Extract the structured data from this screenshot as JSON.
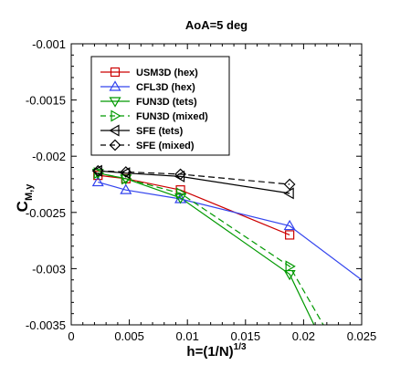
{
  "chart_data": {
    "type": "line",
    "title": "AoA=5 deg",
    "xlabel": {
      "base": "h=(1/N)",
      "sup": "1/3"
    },
    "ylabel": {
      "base": "C",
      "sub": "M,y"
    },
    "xlim": [
      0,
      0.025
    ],
    "ylim": [
      -0.0035,
      -0.001
    ],
    "x_ticks": [
      0,
      0.005,
      0.01,
      0.015,
      0.02,
      0.025
    ],
    "x_tick_labels": [
      "0",
      "0.005",
      "0.01",
      "0.015",
      "0.02",
      "0.025"
    ],
    "y_ticks": [
      -0.0035,
      -0.003,
      -0.0025,
      -0.002,
      -0.0015,
      -0.001
    ],
    "y_tick_labels": [
      "-0.0035",
      "-0.003",
      "-0.0025",
      "-0.002",
      "-0.0015",
      "-0.001"
    ],
    "grid": false,
    "legend_position": "upper-left",
    "series": [
      {
        "name": "USM3D (hex)",
        "color": "#cc0000",
        "marker": "square",
        "dash": "solid",
        "x": [
          0.0023,
          0.0047,
          0.0094,
          0.0188
        ],
        "y": [
          -0.00217,
          -0.0022,
          -0.0023,
          -0.0027
        ],
        "extension": []
      },
      {
        "name": "CFL3D (hex)",
        "color": "#3344ee",
        "marker": "triangle-up",
        "dash": "solid",
        "x": [
          0.0023,
          0.0047,
          0.0094,
          0.0188
        ],
        "y": [
          -0.00223,
          -0.0023,
          -0.00238,
          -0.00262
        ],
        "extension": [
          [
            0.025,
            -0.0031
          ]
        ]
      },
      {
        "name": "FUN3D (tets)",
        "color": "#009900",
        "marker": "triangle-down",
        "dash": "solid",
        "x": [
          0.0023,
          0.0047,
          0.0094,
          0.0188
        ],
        "y": [
          -0.00215,
          -0.0022,
          -0.00237,
          -0.00305
        ],
        "extension": [
          [
            0.0209,
            -0.0035
          ]
        ]
      },
      {
        "name": "FUN3D (mixed)",
        "color": "#009900",
        "marker": "triangle-right",
        "dash": "dashed",
        "x": [
          0.0023,
          0.0047,
          0.0094,
          0.0188
        ],
        "y": [
          -0.00215,
          -0.0022,
          -0.00233,
          -0.00298
        ],
        "extension": [
          [
            0.0217,
            -0.0035
          ]
        ]
      },
      {
        "name": "SFE (tets)",
        "color": "#000000",
        "marker": "triangle-left",
        "dash": "solid",
        "x": [
          0.0023,
          0.0047,
          0.0094,
          0.0188
        ],
        "y": [
          -0.00213,
          -0.00215,
          -0.00218,
          -0.00233
        ],
        "extension": []
      },
      {
        "name": "SFE (mixed)",
        "color": "#000000",
        "marker": "diamond",
        "dash": "dashed",
        "x": [
          0.0023,
          0.0047,
          0.0094,
          0.0188
        ],
        "y": [
          -0.00213,
          -0.00214,
          -0.00216,
          -0.00225
        ],
        "extension": []
      }
    ]
  }
}
